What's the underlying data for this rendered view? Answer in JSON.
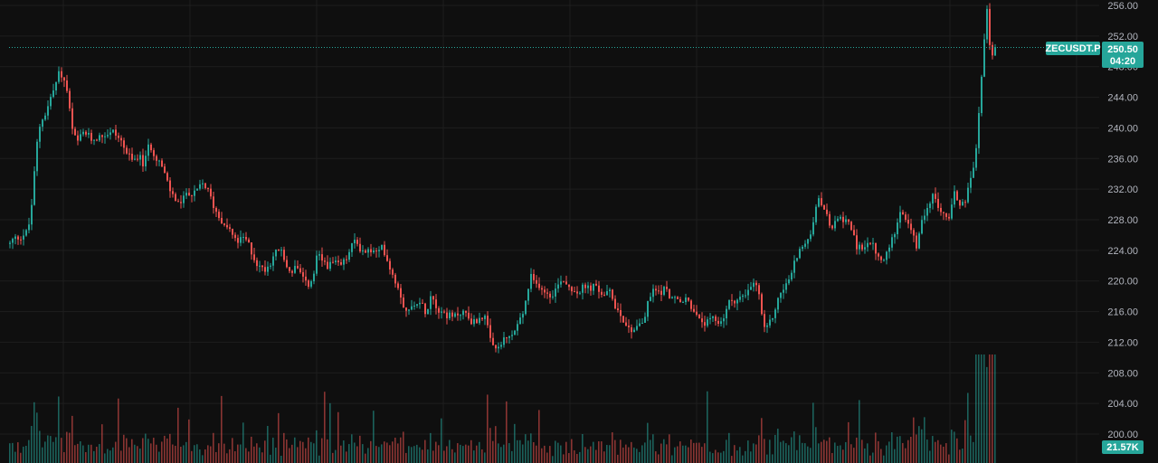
{
  "chart_data": {
    "type": "candlestick",
    "symbol": "ZECUSDT.P",
    "y_axis": {
      "ticks": [
        256,
        252,
        248,
        244,
        240,
        236,
        232,
        228,
        224,
        220,
        216,
        212,
        208,
        204,
        200
      ],
      "tick_labels": [
        "256.00",
        "252.00",
        "248.00",
        "244.00",
        "240.00",
        "236.00",
        "232.00",
        "228.00",
        "224.00",
        "220.00",
        "216.00",
        "212.00",
        "208.00",
        "204.00",
        "200.00"
      ],
      "range": [
        196,
        256.5
      ]
    },
    "last_price": 250.5,
    "last_price_label": "250.50",
    "countdown": "04:20",
    "volume_label": "21.57K",
    "grid": true,
    "colors": {
      "background": "#0f0f0f",
      "up": "#26a69a",
      "down": "#ef5350",
      "grid": "#1e1e1e",
      "price_line": "#26a69a"
    },
    "price_path": [
      [
        0,
        226.0
      ],
      [
        8,
        224.5
      ],
      [
        14,
        225.5
      ],
      [
        22,
        225.8
      ],
      [
        30,
        226.5
      ],
      [
        34,
        230
      ],
      [
        37,
        234
      ],
      [
        40,
        238
      ],
      [
        44,
        241
      ],
      [
        50,
        242
      ],
      [
        55,
        244
      ],
      [
        60,
        245.5
      ],
      [
        65,
        247.5
      ],
      [
        70,
        246
      ],
      [
        74,
        244.5
      ],
      [
        78,
        240
      ],
      [
        84,
        238
      ],
      [
        92,
        239.5
      ],
      [
        100,
        238.5
      ],
      [
        108,
        238.8
      ],
      [
        116,
        239.2
      ],
      [
        124,
        239.5
      ],
      [
        132,
        238.5
      ],
      [
        140,
        236.5
      ],
      [
        146,
        235.5
      ],
      [
        152,
        236.5
      ],
      [
        158,
        235
      ],
      [
        164,
        238
      ],
      [
        170,
        236.5
      ],
      [
        176,
        235.5
      ],
      [
        182,
        233.5
      ],
      [
        188,
        231.5
      ],
      [
        194,
        230.5
      ],
      [
        200,
        230
      ],
      [
        206,
        232
      ],
      [
        212,
        231
      ],
      [
        218,
        232
      ],
      [
        224,
        232.8
      ],
      [
        230,
        231.5
      ],
      [
        236,
        229.5
      ],
      [
        242,
        228.2
      ],
      [
        248,
        227.5
      ],
      [
        254,
        226.5
      ],
      [
        260,
        225
      ],
      [
        266,
        225.5
      ],
      [
        272,
        225.3
      ],
      [
        278,
        223.5
      ],
      [
        284,
        222
      ],
      [
        290,
        221.5
      ],
      [
        296,
        222
      ],
      [
        302,
        223.5
      ],
      [
        308,
        224.3
      ],
      [
        314,
        222.5
      ],
      [
        320,
        221
      ],
      [
        326,
        222
      ],
      [
        332,
        220.5
      ],
      [
        338,
        219.5
      ],
      [
        344,
        219.8
      ],
      [
        350,
        223.5
      ],
      [
        356,
        222.5
      ],
      [
        362,
        222
      ],
      [
        368,
        222.3
      ],
      [
        374,
        222
      ],
      [
        380,
        222.5
      ],
      [
        386,
        224
      ],
      [
        392,
        225.5
      ],
      [
        398,
        224
      ],
      [
        404,
        223.8
      ],
      [
        410,
        224
      ],
      [
        416,
        223.5
      ],
      [
        422,
        224.5
      ],
      [
        428,
        222.5
      ],
      [
        434,
        220.5
      ],
      [
        440,
        219
      ],
      [
        446,
        216.5
      ],
      [
        452,
        216
      ],
      [
        458,
        217.5
      ],
      [
        464,
        217
      ],
      [
        470,
        216
      ],
      [
        476,
        218.5
      ],
      [
        482,
        216.5
      ],
      [
        488,
        216
      ],
      [
        494,
        215.5
      ],
      [
        500,
        215.2
      ],
      [
        506,
        215.8
      ],
      [
        512,
        216
      ],
      [
        518,
        215
      ],
      [
        524,
        214.5
      ],
      [
        530,
        215.5
      ],
      [
        536,
        215
      ],
      [
        542,
        211.5
      ],
      [
        548,
        211
      ],
      [
        554,
        212
      ],
      [
        560,
        212.5
      ],
      [
        566,
        213
      ],
      [
        572,
        214.5
      ],
      [
        578,
        216
      ],
      [
        582,
        218.5
      ],
      [
        586,
        220.5
      ],
      [
        590,
        219.5
      ],
      [
        596,
        219.5
      ],
      [
        602,
        218.5
      ],
      [
        608,
        218.2
      ],
      [
        614,
        219
      ],
      [
        620,
        220.5
      ],
      [
        626,
        219.5
      ],
      [
        632,
        219
      ],
      [
        638,
        218.5
      ],
      [
        644,
        219.2
      ],
      [
        650,
        219
      ],
      [
        656,
        219.3
      ],
      [
        662,
        218.5
      ],
      [
        668,
        218.2
      ],
      [
        674,
        218.5
      ],
      [
        680,
        216.5
      ],
      [
        686,
        215.5
      ],
      [
        692,
        214
      ],
      [
        698,
        213.5
      ],
      [
        704,
        214.5
      ],
      [
        710,
        214.5
      ],
      [
        716,
        217.5
      ],
      [
        722,
        219
      ],
      [
        728,
        218.5
      ],
      [
        734,
        219
      ],
      [
        740,
        218
      ],
      [
        746,
        217.5
      ],
      [
        752,
        217
      ],
      [
        758,
        217.8
      ],
      [
        764,
        216.5
      ],
      [
        770,
        215
      ],
      [
        776,
        214.5
      ],
      [
        782,
        214.5
      ],
      [
        788,
        215
      ],
      [
        794,
        214.5
      ],
      [
        800,
        215.5
      ],
      [
        806,
        217.5
      ],
      [
        812,
        217.5
      ],
      [
        818,
        217.8
      ],
      [
        824,
        218
      ],
      [
        830,
        219.5
      ],
      [
        836,
        219.5
      ],
      [
        840,
        216.5
      ],
      [
        844,
        213.5
      ],
      [
        848,
        214
      ],
      [
        852,
        215
      ],
      [
        856,
        216.5
      ],
      [
        862,
        218.5
      ],
      [
        868,
        219.5
      ],
      [
        874,
        221
      ],
      [
        880,
        223.5
      ],
      [
        886,
        224.5
      ],
      [
        892,
        225
      ],
      [
        898,
        228
      ],
      [
        904,
        230.5
      ],
      [
        910,
        229.5
      ],
      [
        916,
        227
      ],
      [
        922,
        227.5
      ],
      [
        928,
        228
      ],
      [
        934,
        228.3
      ],
      [
        940,
        227
      ],
      [
        946,
        224
      ],
      [
        952,
        224.5
      ],
      [
        958,
        225
      ],
      [
        964,
        224.5
      ],
      [
        970,
        223
      ],
      [
        976,
        222.5
      ],
      [
        982,
        224.5
      ],
      [
        988,
        226.5
      ],
      [
        994,
        229.5
      ],
      [
        1000,
        228
      ],
      [
        1006,
        226.5
      ],
      [
        1012,
        224.5
      ],
      [
        1018,
        227.5
      ],
      [
        1024,
        230
      ],
      [
        1030,
        231
      ],
      [
        1036,
        230
      ],
      [
        1042,
        228.5
      ],
      [
        1048,
        228.5
      ],
      [
        1054,
        231.5
      ],
      [
        1060,
        230
      ],
      [
        1066,
        230.5
      ],
      [
        1070,
        233
      ],
      [
        1074,
        233.5
      ],
      [
        1078,
        237
      ],
      [
        1082,
        243
      ],
      [
        1085,
        248
      ],
      [
        1088,
        253
      ],
      [
        1090,
        255.5
      ],
      [
        1093,
        251
      ],
      [
        1096,
        249.5
      ],
      [
        1100,
        250.5
      ]
    ]
  }
}
